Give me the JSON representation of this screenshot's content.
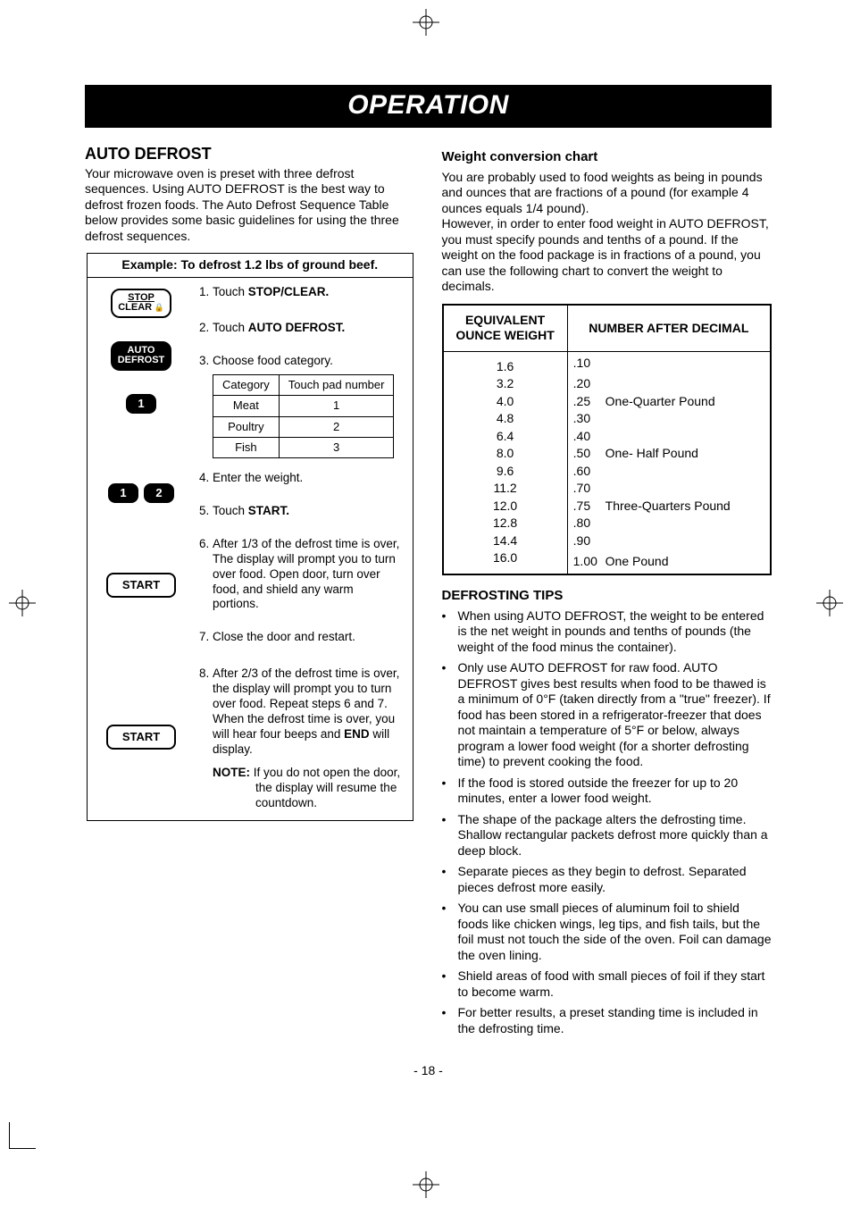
{
  "title": "OPERATION",
  "page_number": "- 18 -",
  "left": {
    "heading": "AUTO DEFROST",
    "intro": "Your microwave oven is preset with three defrost sequences. Using AUTO DEFROST is the best way to defrost frozen foods. The Auto Defrost Sequence Table below provides some basic guidelines for using the three defrost sequences.",
    "example_title": "Example: To defrost 1.2 lbs of ground beef.",
    "buttons": {
      "stop_line1": "STOP",
      "stop_line2": "CLEAR",
      "auto_line1": "AUTO",
      "auto_line2": "DEFROST",
      "start": "START"
    },
    "steps": {
      "s1a": "Touch ",
      "s1b": "STOP/CLEAR.",
      "s2a": "Touch ",
      "s2b": "AUTO DEFROST.",
      "s3": "Choose food category.",
      "s4": "Enter the weight.",
      "s5a": "Touch ",
      "s5b": "START.",
      "s6": "After 1/3 of the defrost time is over, The display will prompt you to turn over food. Open door, turn over food, and shield any warm portions.",
      "s7": "Close the door and restart.",
      "s8a": "After 2/3 of the defrost time is over, the display will prompt you to turn over food. Repeat steps 6 and 7. When the defrost time is over, you will hear four beeps and ",
      "s8b": "END",
      "s8c": " will display."
    },
    "category_table": {
      "h1": "Category",
      "h2": "Touch pad number",
      "rows": [
        [
          "Meat",
          "1"
        ],
        [
          "Poultry",
          "2"
        ],
        [
          "Fish",
          "3"
        ]
      ]
    },
    "note_label": "NOTE:",
    "note_text": " If you do not open the door, the display will resume the countdown."
  },
  "right": {
    "conv_heading": "Weight conversion chart",
    "conv_intro1": "You are probably used to food weights as being in pounds and ounces that are fractions of a pound (for example 4 ounces equals 1/4 pound).",
    "conv_intro2": "However, in order to enter food weight in AUTO DEFROST, you must specify pounds and tenths of a pound. If the weight on the food package is in fractions of a pound, you can use the following chart to convert the weight to decimals.",
    "conv_table": {
      "head1": "EQUIVALENT OUNCE WEIGHT",
      "head2": "NUMBER AFTER DECIMAL",
      "rows": [
        {
          "oz": "1.6",
          "dec": ".10",
          "lbl": ""
        },
        {
          "oz": "3.2",
          "dec": ".20",
          "lbl": ""
        },
        {
          "oz": "4.0",
          "dec": ".25",
          "lbl": "One-Quarter Pound"
        },
        {
          "oz": "4.8",
          "dec": ".30",
          "lbl": ""
        },
        {
          "oz": "6.4",
          "dec": ".40",
          "lbl": ""
        },
        {
          "oz": "8.0",
          "dec": ".50",
          "lbl": "One- Half Pound"
        },
        {
          "oz": "9.6",
          "dec": ".60",
          "lbl": ""
        },
        {
          "oz": "11.2",
          "dec": ".70",
          "lbl": ""
        },
        {
          "oz": "12.0",
          "dec": ".75",
          "lbl": "Three-Quarters Pound"
        },
        {
          "oz": "12.8",
          "dec": ".80",
          "lbl": ""
        },
        {
          "oz": "14.4",
          "dec": ".90",
          "lbl": ""
        },
        {
          "oz": "16.0",
          "dec": "1.00",
          "lbl": "One Pound"
        }
      ]
    },
    "tips_heading": "DEFROSTING TIPS",
    "tips": [
      "When using AUTO DEFROST, the weight to be entered is the net weight in pounds and tenths of pounds (the weight of the food minus the container).",
      "Only use AUTO DEFROST for raw food. AUTO DEFROST gives best results when food to be thawed is a minimum of 0°F (taken directly from a \"true\" freezer). If food has been stored in a refrigerator-freezer that does not maintain a temperature of  5°F  or below, always program a lower food weight (for a shorter defrosting time) to prevent cooking the food.",
      "If the food is stored outside the freezer for up to 20 minutes, enter a lower food weight.",
      "The shape of the package alters the defrosting time. Shallow rectangular packets defrost more quickly than a deep block.",
      "Separate pieces as they begin to defrost. Separated pieces defrost more easily.",
      "You can use small pieces of aluminum foil to shield foods like chicken wings, leg tips, and fish tails, but the foil must not touch the side of the oven. Foil can damage the oven lining.",
      "Shield areas of food with small pieces of foil if they start to become warm.",
      "For better results, a preset standing time is included in the defrosting time."
    ]
  }
}
